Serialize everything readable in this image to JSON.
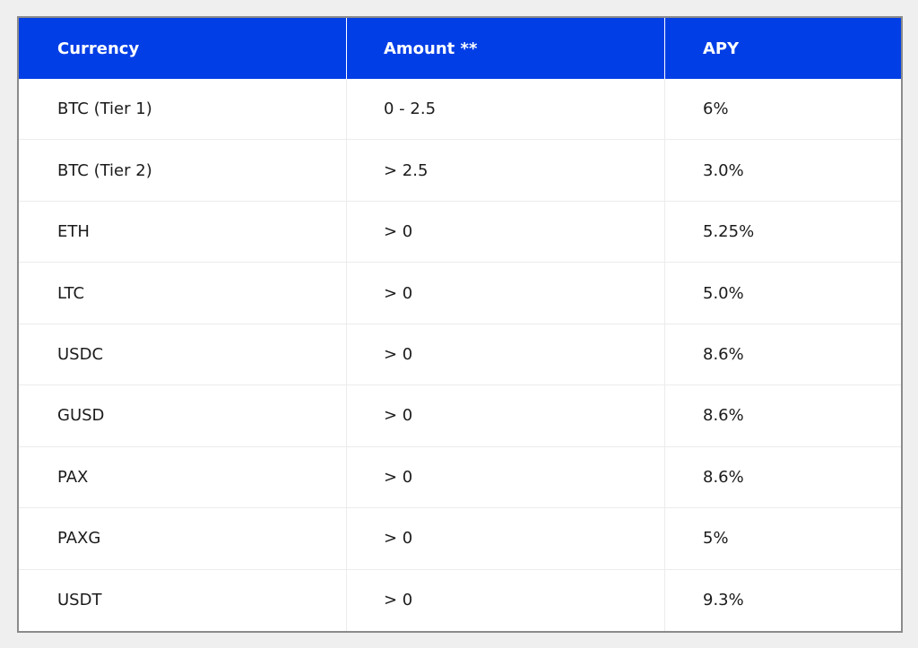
{
  "table": {
    "headers": [
      "Currency",
      "Amount **",
      "APY"
    ],
    "rows": [
      [
        "BTC (Tier 1)",
        "0 - 2.5",
        "6%"
      ],
      [
        "BTC (Tier 2)",
        "> 2.5",
        "3.0%"
      ],
      [
        "ETH",
        "> 0",
        "5.25%"
      ],
      [
        "LTC",
        "> 0",
        "5.0%"
      ],
      [
        "USDC",
        "> 0",
        "8.6%"
      ],
      [
        "GUSD",
        "> 0",
        "8.6%"
      ],
      [
        "PAX",
        "> 0",
        "8.6%"
      ],
      [
        "PAXG",
        "> 0",
        "5%"
      ],
      [
        "USDT",
        "> 0",
        "9.3%"
      ]
    ]
  },
  "colors": {
    "header_bg": "#013ee6",
    "header_text": "#ffffff",
    "body_text": "#1b1b1b",
    "frame_border": "#8b8b8b",
    "page_bg": "#efefef"
  }
}
